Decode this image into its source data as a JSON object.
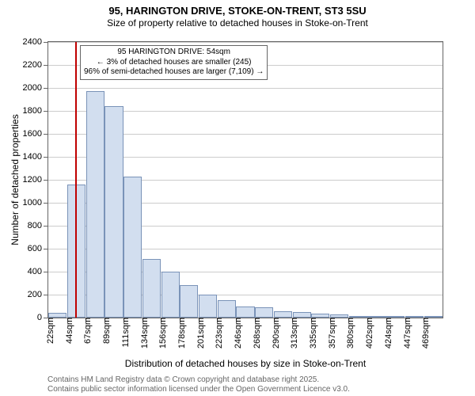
{
  "title": "95, HARINGTON DRIVE, STOKE-ON-TRENT, ST3 5SU",
  "subtitle": "Size of property relative to detached houses in Stoke-on-Trent",
  "y_axis": {
    "title": "Number of detached properties",
    "min": 0,
    "max": 2400,
    "tick_step": 200,
    "tick_labels": [
      "0",
      "200",
      "400",
      "600",
      "800",
      "1000",
      "1200",
      "1400",
      "1600",
      "1800",
      "2000",
      "2200",
      "2400"
    ]
  },
  "x_axis": {
    "title": "Distribution of detached houses by size in Stoke-on-Trent",
    "categories": [
      "22sqm",
      "44sqm",
      "67sqm",
      "89sqm",
      "111sqm",
      "134sqm",
      "156sqm",
      "178sqm",
      "201sqm",
      "223sqm",
      "246sqm",
      "268sqm",
      "290sqm",
      "313sqm",
      "335sqm",
      "357sqm",
      "380sqm",
      "402sqm",
      "424sqm",
      "447sqm",
      "469sqm"
    ]
  },
  "bars": {
    "values": [
      40,
      1160,
      1970,
      1840,
      1230,
      510,
      400,
      280,
      200,
      150,
      100,
      90,
      55,
      45,
      35,
      25,
      15,
      10,
      8,
      6,
      5
    ],
    "fill_color": "#d2deef",
    "border_color": "#7a93b8",
    "width_frac": 0.98
  },
  "marker": {
    "x_value_sqm": 54,
    "x_range_min": 22,
    "x_range_max": 491,
    "color": "#c00000"
  },
  "annotation": {
    "line1": "95 HARINGTON DRIVE: 54sqm",
    "line2": "← 3% of detached houses are smaller (245)",
    "line3": "96% of semi-detached houses are larger (7,109) →"
  },
  "footer": {
    "line1": "Contains HM Land Registry data © Crown copyright and database right 2025.",
    "line2": "Contains public sector information licensed under the Open Government Licence v3.0."
  },
  "style": {
    "title_fontsize": 13,
    "subtitle_fontsize": 12,
    "axis_label_fontsize": 11,
    "axis_title_fontsize": 12,
    "annotation_fontsize": 10,
    "footer_fontsize": 10,
    "bg_color": "#ffffff",
    "grid_color": "#cccccc",
    "axis_color": "#666666",
    "footer_color": "#666666"
  }
}
